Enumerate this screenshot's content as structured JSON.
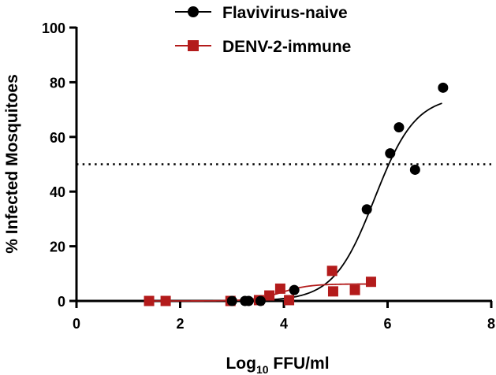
{
  "chart_data": {
    "type": "scatter",
    "title": "",
    "xlabel_main": "Log",
    "xlabel_sub": "10",
    "xlabel_rest": " FFU/ml",
    "ylabel": "% Infected Mosquitoes",
    "xlim": [
      0,
      8
    ],
    "ylim": [
      0,
      100
    ],
    "xticks": [
      0,
      2,
      4,
      6,
      8
    ],
    "yticks": [
      0,
      20,
      40,
      60,
      80,
      100
    ],
    "grid": false,
    "legend_position": "top-center",
    "reference_line": {
      "y": 50,
      "style": "dotted"
    },
    "series": [
      {
        "name": "Flavivirus-naive",
        "marker": "circle",
        "color": "#000000",
        "points": [
          {
            "x": 3.0,
            "y": 0
          },
          {
            "x": 3.25,
            "y": 0
          },
          {
            "x": 3.32,
            "y": 0
          },
          {
            "x": 3.55,
            "y": 0
          },
          {
            "x": 4.2,
            "y": 4
          },
          {
            "x": 5.6,
            "y": 33.5
          },
          {
            "x": 6.05,
            "y": 54
          },
          {
            "x": 6.22,
            "y": 63.5
          },
          {
            "x": 6.53,
            "y": 48
          },
          {
            "x": 7.07,
            "y": 78
          }
        ],
        "fit": {
          "bottom": 0,
          "top": 75,
          "ec50_log": 5.75,
          "hill": 1.1,
          "x_start": 0,
          "x_end": 7.05
        }
      },
      {
        "name": "DENV-2-immune",
        "marker": "square",
        "color": "#b31b1b",
        "points": [
          {
            "x": 1.4,
            "y": 0
          },
          {
            "x": 1.72,
            "y": 0
          },
          {
            "x": 2.97,
            "y": 0
          },
          {
            "x": 3.52,
            "y": 0.3
          },
          {
            "x": 3.72,
            "y": 2
          },
          {
            "x": 3.93,
            "y": 4.5
          },
          {
            "x": 4.1,
            "y": 0.3
          },
          {
            "x": 4.93,
            "y": 11
          },
          {
            "x": 4.95,
            "y": 3.5
          },
          {
            "x": 5.37,
            "y": 4
          },
          {
            "x": 5.68,
            "y": 7
          }
        ],
        "fit": {
          "bottom": 0,
          "top": 6.2,
          "ec50_log": 3.95,
          "hill": 1.6,
          "x_start": 1.4,
          "x_end": 5.68
        }
      }
    ]
  },
  "colors": {
    "naive": "#000000",
    "immune": "#b31b1b",
    "axis": "#000000"
  }
}
